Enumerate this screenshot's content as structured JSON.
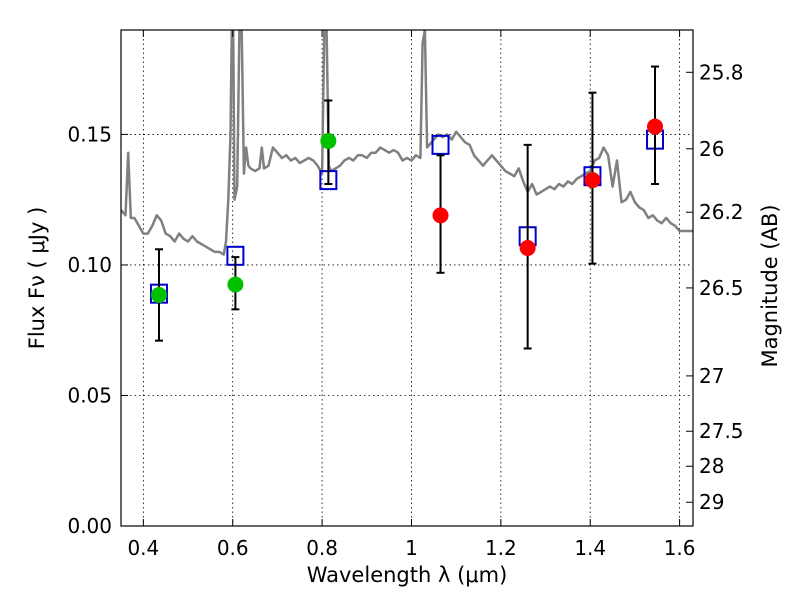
{
  "chart_data": {
    "type": "scatter",
    "xlabel": "Wavelength  λ (μm)",
    "ylabel": "Flux  Fν  ( μJy )",
    "ylabel_right": "Magnitude (AB)",
    "xlim": [
      0.35,
      1.63
    ],
    "ylim": [
      0.0,
      0.19
    ],
    "grid": true,
    "x_ticks": [
      0.4,
      0.6,
      0.8,
      1.0,
      1.2,
      1.4,
      1.6
    ],
    "x_tick_labels": [
      "0.4",
      "0.6",
      "0.8",
      "1",
      "1.2",
      "1.4",
      "1.6"
    ],
    "y_ticks": [
      0.0,
      0.05,
      0.1,
      0.15
    ],
    "y_tick_labels": [
      "0.00",
      "0.05",
      "0.10",
      "0.15"
    ],
    "mag_ticks": [
      {
        "label": "25.8",
        "flux": 0.1738
      },
      {
        "label": "26",
        "flux": 0.1445
      },
      {
        "label": "26.2",
        "flux": 0.1202
      },
      {
        "label": "26.5",
        "flux": 0.0912
      },
      {
        "label": "27",
        "flux": 0.0575
      },
      {
        "label": "27.5",
        "flux": 0.0363
      },
      {
        "label": "28",
        "flux": 0.0229
      },
      {
        "label": "29",
        "flux": 0.0091
      }
    ],
    "colors": {
      "spectrum": "#808080",
      "green": "#00c000",
      "red": "#ff0000",
      "model": "#0000cc",
      "errorbar": "#000000"
    },
    "series": [
      {
        "marker": "green-circle",
        "points": [
          {
            "x": 0.435,
            "y": 0.0885,
            "yerr_low": 0.071,
            "yerr_high": 0.106
          },
          {
            "x": 0.606,
            "y": 0.0925,
            "yerr_low": 0.083,
            "yerr_high": 0.103
          },
          {
            "x": 0.814,
            "y": 0.1475,
            "yerr_low": 0.131,
            "yerr_high": 0.163
          }
        ]
      },
      {
        "marker": "red-circle",
        "points": [
          {
            "x": 1.065,
            "y": 0.119,
            "yerr_low": 0.097,
            "yerr_high": 0.142
          },
          {
            "x": 1.26,
            "y": 0.1065,
            "yerr_low": 0.068,
            "yerr_high": 0.146
          },
          {
            "x": 1.405,
            "y": 0.1325,
            "yerr_low": 0.1005,
            "yerr_high": 0.166
          },
          {
            "x": 1.545,
            "y": 0.153,
            "yerr_low": 0.131,
            "yerr_high": 0.176
          }
        ]
      },
      {
        "marker": "blue-open-square",
        "points": [
          {
            "x": 0.435,
            "y": 0.089
          },
          {
            "x": 0.606,
            "y": 0.1035
          },
          {
            "x": 0.814,
            "y": 0.1325
          },
          {
            "x": 1.065,
            "y": 0.146
          },
          {
            "x": 1.26,
            "y": 0.111
          },
          {
            "x": 1.405,
            "y": 0.134
          },
          {
            "x": 1.545,
            "y": 0.148
          }
        ]
      },
      {
        "marker": "gray-line",
        "points": [
          [
            0.35,
            0.121
          ],
          [
            0.36,
            0.119
          ],
          [
            0.366,
            0.143
          ],
          [
            0.372,
            0.118
          ],
          [
            0.38,
            0.118
          ],
          [
            0.39,
            0.115
          ],
          [
            0.4,
            0.112
          ],
          [
            0.41,
            0.112
          ],
          [
            0.42,
            0.115
          ],
          [
            0.43,
            0.119
          ],
          [
            0.44,
            0.117
          ],
          [
            0.45,
            0.112
          ],
          [
            0.46,
            0.111
          ],
          [
            0.47,
            0.109
          ],
          [
            0.48,
            0.112
          ],
          [
            0.49,
            0.11
          ],
          [
            0.5,
            0.109
          ],
          [
            0.51,
            0.111
          ],
          [
            0.52,
            0.109
          ],
          [
            0.53,
            0.108
          ],
          [
            0.54,
            0.107
          ],
          [
            0.55,
            0.106
          ],
          [
            0.56,
            0.105
          ],
          [
            0.57,
            0.105
          ],
          [
            0.58,
            0.104
          ],
          [
            0.585,
            0.109
          ],
          [
            0.59,
            0.125
          ],
          [
            0.595,
            0.15
          ],
          [
            0.598,
            0.19
          ],
          [
            0.601,
            0.19
          ],
          [
            0.604,
            0.125
          ],
          [
            0.61,
            0.13
          ],
          [
            0.615,
            0.19
          ],
          [
            0.62,
            0.19
          ],
          [
            0.625,
            0.135
          ],
          [
            0.63,
            0.145
          ],
          [
            0.635,
            0.138
          ],
          [
            0.64,
            0.137
          ],
          [
            0.65,
            0.136
          ],
          [
            0.66,
            0.137
          ],
          [
            0.665,
            0.145
          ],
          [
            0.67,
            0.137
          ],
          [
            0.68,
            0.138
          ],
          [
            0.69,
            0.145
          ],
          [
            0.7,
            0.143
          ],
          [
            0.71,
            0.141
          ],
          [
            0.72,
            0.142
          ],
          [
            0.73,
            0.14
          ],
          [
            0.74,
            0.141
          ],
          [
            0.75,
            0.139
          ],
          [
            0.76,
            0.14
          ],
          [
            0.77,
            0.141
          ],
          [
            0.78,
            0.14
          ],
          [
            0.79,
            0.138
          ],
          [
            0.8,
            0.135
          ],
          [
            0.805,
            0.19
          ],
          [
            0.81,
            0.19
          ],
          [
            0.815,
            0.138
          ],
          [
            0.82,
            0.136
          ],
          [
            0.83,
            0.137
          ],
          [
            0.84,
            0.138
          ],
          [
            0.85,
            0.14
          ],
          [
            0.86,
            0.141
          ],
          [
            0.87,
            0.14
          ],
          [
            0.88,
            0.142
          ],
          [
            0.89,
            0.142
          ],
          [
            0.9,
            0.141
          ],
          [
            0.91,
            0.143
          ],
          [
            0.92,
            0.143
          ],
          [
            0.93,
            0.145
          ],
          [
            0.94,
            0.144
          ],
          [
            0.95,
            0.143
          ],
          [
            0.96,
            0.144
          ],
          [
            0.97,
            0.143
          ],
          [
            0.98,
            0.14
          ],
          [
            0.99,
            0.141
          ],
          [
            1.0,
            0.14
          ],
          [
            1.01,
            0.142
          ],
          [
            1.02,
            0.141
          ],
          [
            1.025,
            0.185
          ],
          [
            1.03,
            0.19
          ],
          [
            1.035,
            0.145
          ],
          [
            1.04,
            0.146
          ],
          [
            1.05,
            0.148
          ],
          [
            1.06,
            0.15
          ],
          [
            1.07,
            0.149
          ],
          [
            1.08,
            0.15
          ],
          [
            1.09,
            0.148
          ],
          [
            1.1,
            0.151
          ],
          [
            1.11,
            0.149
          ],
          [
            1.12,
            0.147
          ],
          [
            1.13,
            0.146
          ],
          [
            1.14,
            0.142
          ],
          [
            1.15,
            0.14
          ],
          [
            1.16,
            0.138
          ],
          [
            1.17,
            0.14
          ],
          [
            1.18,
            0.142
          ],
          [
            1.19,
            0.14
          ],
          [
            1.2,
            0.138
          ],
          [
            1.21,
            0.136
          ],
          [
            1.22,
            0.135
          ],
          [
            1.23,
            0.134
          ],
          [
            1.24,
            0.137
          ],
          [
            1.25,
            0.132
          ],
          [
            1.26,
            0.128
          ],
          [
            1.27,
            0.131
          ],
          [
            1.28,
            0.127
          ],
          [
            1.29,
            0.128
          ],
          [
            1.3,
            0.129
          ],
          [
            1.31,
            0.13
          ],
          [
            1.32,
            0.129
          ],
          [
            1.33,
            0.131
          ],
          [
            1.34,
            0.13
          ],
          [
            1.35,
            0.132
          ],
          [
            1.36,
            0.131
          ],
          [
            1.37,
            0.133
          ],
          [
            1.38,
            0.134
          ],
          [
            1.39,
            0.135
          ],
          [
            1.4,
            0.136
          ],
          [
            1.41,
            0.14
          ],
          [
            1.42,
            0.141
          ],
          [
            1.43,
            0.145
          ],
          [
            1.44,
            0.142
          ],
          [
            1.45,
            0.13
          ],
          [
            1.46,
            0.14
          ],
          [
            1.47,
            0.124
          ],
          [
            1.48,
            0.125
          ],
          [
            1.49,
            0.128
          ],
          [
            1.5,
            0.124
          ],
          [
            1.51,
            0.122
          ],
          [
            1.52,
            0.121
          ],
          [
            1.53,
            0.118
          ],
          [
            1.54,
            0.119
          ],
          [
            1.55,
            0.117
          ],
          [
            1.56,
            0.116
          ],
          [
            1.57,
            0.118
          ],
          [
            1.58,
            0.116
          ],
          [
            1.59,
            0.115
          ],
          [
            1.6,
            0.113
          ],
          [
            1.62,
            0.113
          ],
          [
            1.63,
            0.113
          ]
        ]
      }
    ]
  }
}
